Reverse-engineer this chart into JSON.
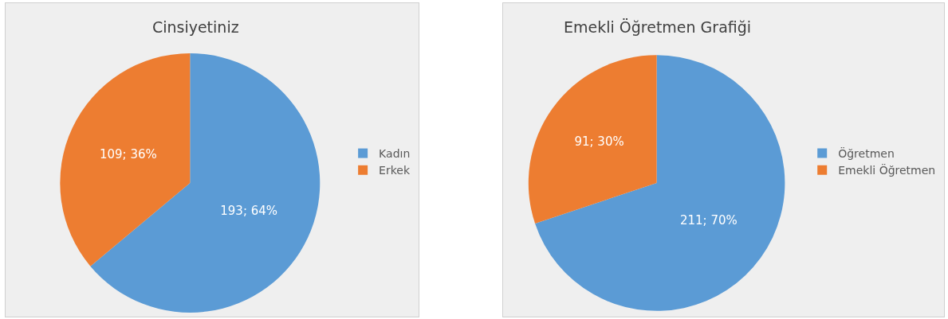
{
  "chart_data": [
    {
      "type": "pie",
      "title": "Cinsiyetiniz",
      "categories": [
        "Kadın",
        "Erkek"
      ],
      "values": [
        193,
        109
      ],
      "colors": [
        "#5b9bd5",
        "#ed7d31"
      ],
      "value_labels": [
        "193; 64%",
        "109; 36%"
      ],
      "legend": "right"
    },
    {
      "type": "pie",
      "title": "Emekli Öğretmen Grafiği",
      "categories": [
        "Öğretmen",
        "Emekli Öğretmen"
      ],
      "values": [
        211,
        91
      ],
      "colors": [
        "#5b9bd5",
        "#ed7d31"
      ],
      "value_labels": [
        "211; 70%",
        "91; 30%"
      ],
      "legend": "right"
    }
  ]
}
